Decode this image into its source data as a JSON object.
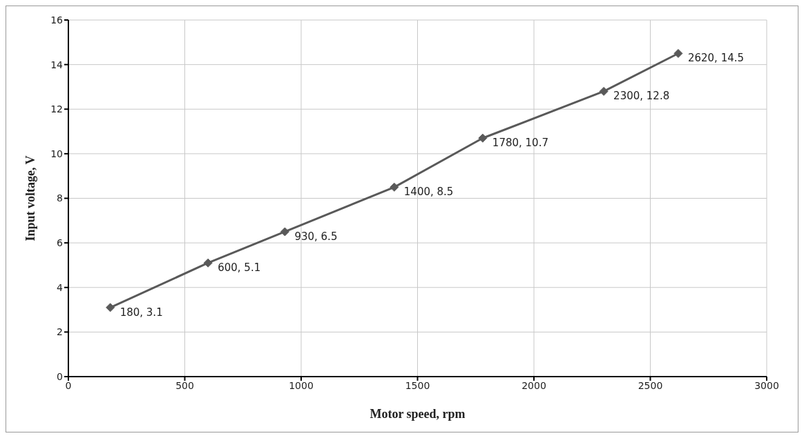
{
  "chart_data": {
    "type": "line",
    "xlabel": "Motor speed, rpm",
    "ylabel": "Input voltage, V",
    "x": [
      180,
      600,
      930,
      1400,
      1780,
      2300,
      2620
    ],
    "series": [
      {
        "color": "#595959",
        "values": [
          3.1,
          5.1,
          6.5,
          8.5,
          10.7,
          12.8,
          14.5
        ],
        "value_labels": [
          "180, 3.1",
          "600, 5.1",
          "930, 6.5",
          "1400, 8.5",
          "1780, 10.7",
          "2300, 12.8",
          "2620, 14.5"
        ]
      }
    ],
    "xlim": [
      0,
      3000
    ],
    "xticks": [
      0,
      500,
      1000,
      1500,
      2000,
      2500,
      3000
    ],
    "ylim": [
      0,
      16
    ],
    "yticks": [
      0,
      2,
      4,
      6,
      8,
      10,
      12,
      14,
      16
    ],
    "grid": true,
    "marker": "diamond",
    "line_style": "solid"
  }
}
